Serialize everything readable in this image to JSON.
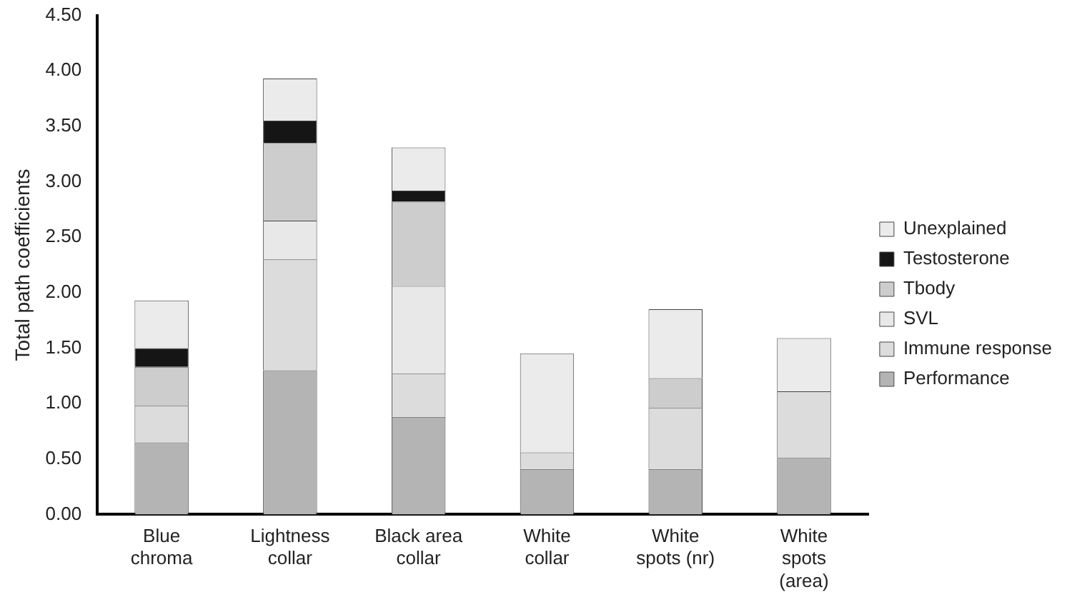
{
  "chart_data": {
    "type": "bar",
    "stacked": true,
    "ylabel": "Total path coefficients",
    "categories": [
      "Blue chroma",
      "Lightness collar",
      "Black area collar",
      "White collar",
      "White spots (nr)",
      "White spots (area)"
    ],
    "series": [
      {
        "name": "Performance",
        "color": "#b4b4b4",
        "values": [
          0.65,
          1.3,
          0.88,
          0.41,
          0.41,
          0.51
        ]
      },
      {
        "name": "Immune response",
        "color": "#dcdcdc",
        "values": [
          0.33,
          1.0,
          0.39,
          0.15,
          0.55,
          0.6
        ]
      },
      {
        "name": "SVL",
        "color": "#e8e8e8",
        "values": [
          0,
          0.35,
          0.79,
          0,
          0,
          0
        ]
      },
      {
        "name": "Tbody",
        "color": "#cdcdcd",
        "values": [
          0.35,
          0.7,
          0.76,
          0,
          0.27,
          0
        ]
      },
      {
        "name": "Testosterone",
        "color": "#151515",
        "values": [
          0.17,
          0.2,
          0.1,
          0,
          0,
          0
        ]
      },
      {
        "name": "Unexplained",
        "color": "#ebebeb",
        "values": [
          0.43,
          0.38,
          0.39,
          0.89,
          0.62,
          0.48
        ]
      }
    ],
    "ylim": [
      0,
      4.5
    ],
    "yticks": [
      {
        "value": 0,
        "label": "0.00"
      },
      {
        "value": 0.5,
        "label": "0.50"
      },
      {
        "value": 1,
        "label": "1.00"
      },
      {
        "value": 1.5,
        "label": "1.50"
      },
      {
        "value": 2,
        "label": "2.00"
      },
      {
        "value": 2.5,
        "label": "2.50"
      },
      {
        "value": 3,
        "label": "3.00"
      },
      {
        "value": 3.5,
        "label": "3.50"
      },
      {
        "value": 4,
        "label": "4.00"
      },
      {
        "value": 4.5,
        "label": "4.50"
      }
    ],
    "grid": false,
    "legend": "right"
  }
}
